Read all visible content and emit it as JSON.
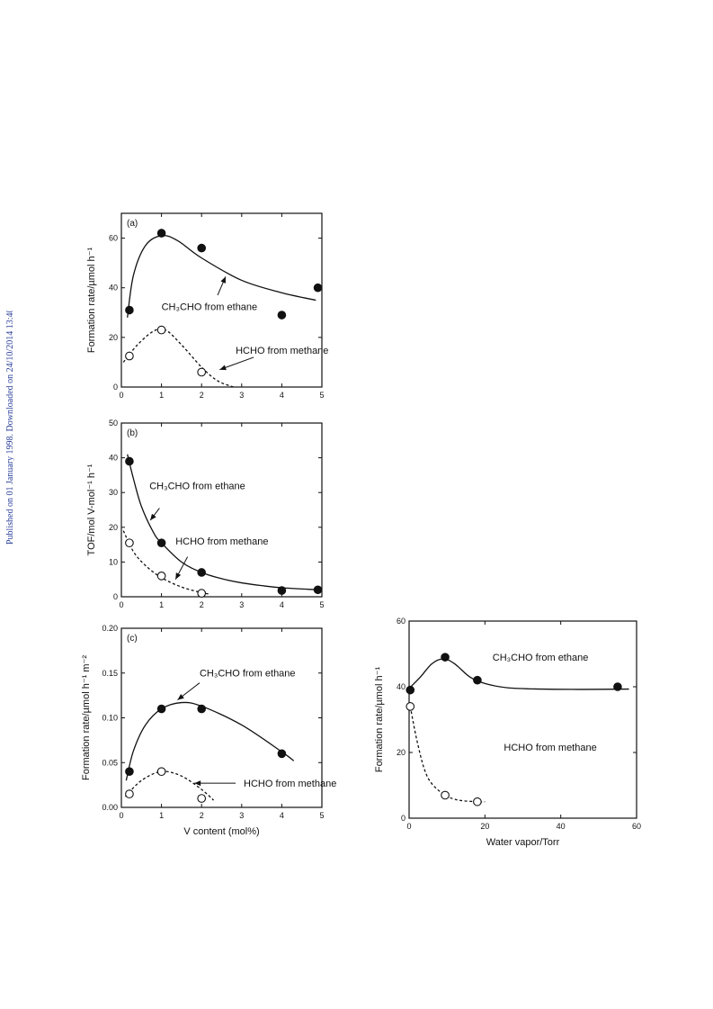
{
  "side_note": "Published on 01 January 1998. Downloaded on 24/10/2014 13:40:42.",
  "chart_data": [
    {
      "id": "a",
      "type": "scatter",
      "panel_label": "(a)",
      "xlabel": "",
      "ylabel": "Formation rate/µmol h⁻¹",
      "xlim": [
        0,
        5
      ],
      "ylim": [
        0,
        70
      ],
      "xticks": [
        0,
        1,
        2,
        3,
        4,
        5
      ],
      "yticks": [
        0,
        20,
        40,
        60
      ],
      "tick_decimals": 0,
      "series": [
        {
          "name": "CH₃CHO from ethane",
          "marker": "filled",
          "line": "solid",
          "x": [
            0.2,
            1,
            2,
            4,
            4.9
          ],
          "y": [
            31,
            62,
            56,
            29,
            40
          ],
          "curve": [
            [
              0.15,
              28
            ],
            [
              0.3,
              45
            ],
            [
              0.6,
              57
            ],
            [
              1,
              61
            ],
            [
              1.4,
              59
            ],
            [
              2,
              52
            ],
            [
              3,
              43
            ],
            [
              4,
              38
            ],
            [
              4.85,
              35
            ]
          ]
        },
        {
          "name": "HCHO from methane",
          "marker": "open",
          "line": "dashed",
          "x": [
            0.2,
            1,
            2
          ],
          "y": [
            12.5,
            23,
            6
          ],
          "curve": [
            [
              0.05,
              10
            ],
            [
              0.4,
              17
            ],
            [
              0.8,
              22.5
            ],
            [
              1.1,
              23
            ],
            [
              1.5,
              17
            ],
            [
              2,
              8
            ],
            [
              2.4,
              2.5
            ],
            [
              2.8,
              0
            ]
          ]
        }
      ],
      "annotations": [
        {
          "text": "CH₃CHO from ethane",
          "at": [
            1,
            31
          ],
          "arrow_to": [
            2.6,
            44.5
          ],
          "arrow_from": [
            2.4,
            37
          ]
        },
        {
          "text": "HCHO from methane",
          "at": [
            2.85,
            13.5
          ],
          "arrow_to": [
            2.45,
            7
          ],
          "arrow_from": [
            3.3,
            12
          ]
        }
      ]
    },
    {
      "id": "b",
      "type": "scatter",
      "panel_label": "(b)",
      "xlabel": "",
      "ylabel": "TOF/mol V-mol⁻¹ h⁻¹",
      "xlim": [
        0,
        5
      ],
      "ylim": [
        0,
        50
      ],
      "xticks": [
        0,
        1,
        2,
        3,
        4,
        5
      ],
      "yticks": [
        0,
        10,
        20,
        30,
        40,
        50
      ],
      "tick_decimals": 0,
      "series": [
        {
          "name": "CH₃CHO from ethane",
          "marker": "filled",
          "line": "solid",
          "x": [
            0.2,
            1,
            2,
            4,
            4.9
          ],
          "y": [
            39,
            15.5,
            7,
            1.8,
            2
          ],
          "curve": [
            [
              0.15,
              41
            ],
            [
              0.3,
              34
            ],
            [
              0.5,
              26
            ],
            [
              0.8,
              18.5
            ],
            [
              1,
              15.5
            ],
            [
              1.5,
              10
            ],
            [
              2,
              7
            ],
            [
              2.5,
              5.2
            ],
            [
              3,
              4
            ],
            [
              3.5,
              3.2
            ],
            [
              4,
              2.6
            ],
            [
              4.9,
              2
            ]
          ]
        },
        {
          "name": "HCHO from methane",
          "marker": "open",
          "line": "dashed",
          "x": [
            0.2,
            1,
            2
          ],
          "y": [
            15.5,
            6,
            1
          ],
          "curve": [
            [
              0.05,
              19
            ],
            [
              0.3,
              13
            ],
            [
              0.6,
              9
            ],
            [
              1,
              5.5
            ],
            [
              1.5,
              2.8
            ],
            [
              2,
              1.2
            ],
            [
              2.2,
              0.8
            ]
          ]
        }
      ],
      "annotations": [
        {
          "text": "CH₃CHO from ethane",
          "at": [
            0.7,
            31
          ],
          "arrow_to": [
            0.72,
            22
          ],
          "arrow_from": [
            0.95,
            25.5
          ]
        },
        {
          "text": "HCHO from methane",
          "at": [
            1.35,
            15
          ],
          "arrow_to": [
            1.35,
            5
          ],
          "arrow_from": [
            1.65,
            11.5
          ]
        }
      ]
    },
    {
      "id": "c",
      "type": "scatter",
      "panel_label": "(c)",
      "xlabel": "V content (mol%)",
      "ylabel": "Formation rate/µmol h⁻¹ m⁻²",
      "xlim": [
        0,
        5
      ],
      "ylim": [
        0,
        0.2
      ],
      "xticks": [
        0,
        1,
        2,
        3,
        4,
        5
      ],
      "yticks": [
        0.0,
        0.05,
        0.1,
        0.15,
        0.2
      ],
      "tick_decimals": 2,
      "series": [
        {
          "name": "CH₃CHO from ethane",
          "marker": "filled",
          "line": "solid",
          "x": [
            0.2,
            1,
            2,
            4
          ],
          "y": [
            0.04,
            0.11,
            0.11,
            0.06
          ],
          "curve": [
            [
              0.12,
              0.03
            ],
            [
              0.3,
              0.063
            ],
            [
              0.6,
              0.092
            ],
            [
              1,
              0.11
            ],
            [
              1.5,
              0.117
            ],
            [
              2,
              0.113
            ],
            [
              3,
              0.092
            ],
            [
              4,
              0.062
            ],
            [
              4.3,
              0.052
            ]
          ]
        },
        {
          "name": "HCHO from methane",
          "marker": "open",
          "line": "dashed",
          "x": [
            0.2,
            1,
            2
          ],
          "y": [
            0.015,
            0.04,
            0.01
          ],
          "curve": [
            [
              0.1,
              0.012
            ],
            [
              0.5,
              0.03
            ],
            [
              1,
              0.04
            ],
            [
              1.5,
              0.035
            ],
            [
              2,
              0.02
            ],
            [
              2.3,
              0.008
            ]
          ]
        }
      ],
      "annotations": [
        {
          "text": "CH₃CHO from ethane",
          "at": [
            1.95,
            0.146
          ],
          "arrow_to": [
            1.4,
            0.12
          ],
          "arrow_from": [
            1.95,
            0.139
          ]
        },
        {
          "text": "HCHO from methane",
          "at": [
            3.05,
            0.023
          ],
          "arrow_to": [
            1.82,
            0.027
          ],
          "arrow_from": [
            2.85,
            0.027
          ]
        }
      ]
    },
    {
      "id": "d",
      "type": "scatter",
      "panel_label": "",
      "xlabel": "Water vapor/Torr",
      "ylabel": "Formation rate/µmol h⁻¹",
      "xlim": [
        0,
        60
      ],
      "ylim": [
        0,
        60
      ],
      "xticks": [
        0,
        20,
        40,
        60
      ],
      "yticks": [
        0,
        20,
        40,
        60
      ],
      "tick_decimals": 0,
      "series": [
        {
          "name": "CH₃CHO from ethane",
          "marker": "filled",
          "line": "solid",
          "x": [
            0.3,
            9.5,
            18,
            55
          ],
          "y": [
            39,
            49,
            42,
            40
          ],
          "curve": [
            [
              0,
              39.5
            ],
            [
              3,
              43
            ],
            [
              6,
              47
            ],
            [
              9,
              48.5
            ],
            [
              12,
              47
            ],
            [
              16,
              43
            ],
            [
              20,
              41
            ],
            [
              26,
              39.7
            ],
            [
              35,
              39.3
            ],
            [
              45,
              39.2
            ],
            [
              58,
              39.3
            ]
          ]
        },
        {
          "name": "HCHO from methane",
          "marker": "open",
          "line": "dashed",
          "x": [
            0.3,
            9.5,
            18
          ],
          "y": [
            34,
            7,
            5
          ],
          "curve": [
            [
              0.3,
              34
            ],
            [
              2,
              24
            ],
            [
              4,
              15
            ],
            [
              6,
              10.5
            ],
            [
              9.5,
              7
            ],
            [
              13,
              5.5
            ],
            [
              18,
              5
            ],
            [
              20,
              5
            ]
          ]
        }
      ],
      "annotations": [
        {
          "text": "CH₃CHO from ethane",
          "at": [
            22,
            48
          ],
          "arrow_to": null,
          "arrow_from": null
        },
        {
          "text": "HCHO from methane",
          "at": [
            25,
            20.5
          ],
          "arrow_to": null,
          "arrow_from": null
        }
      ]
    }
  ]
}
